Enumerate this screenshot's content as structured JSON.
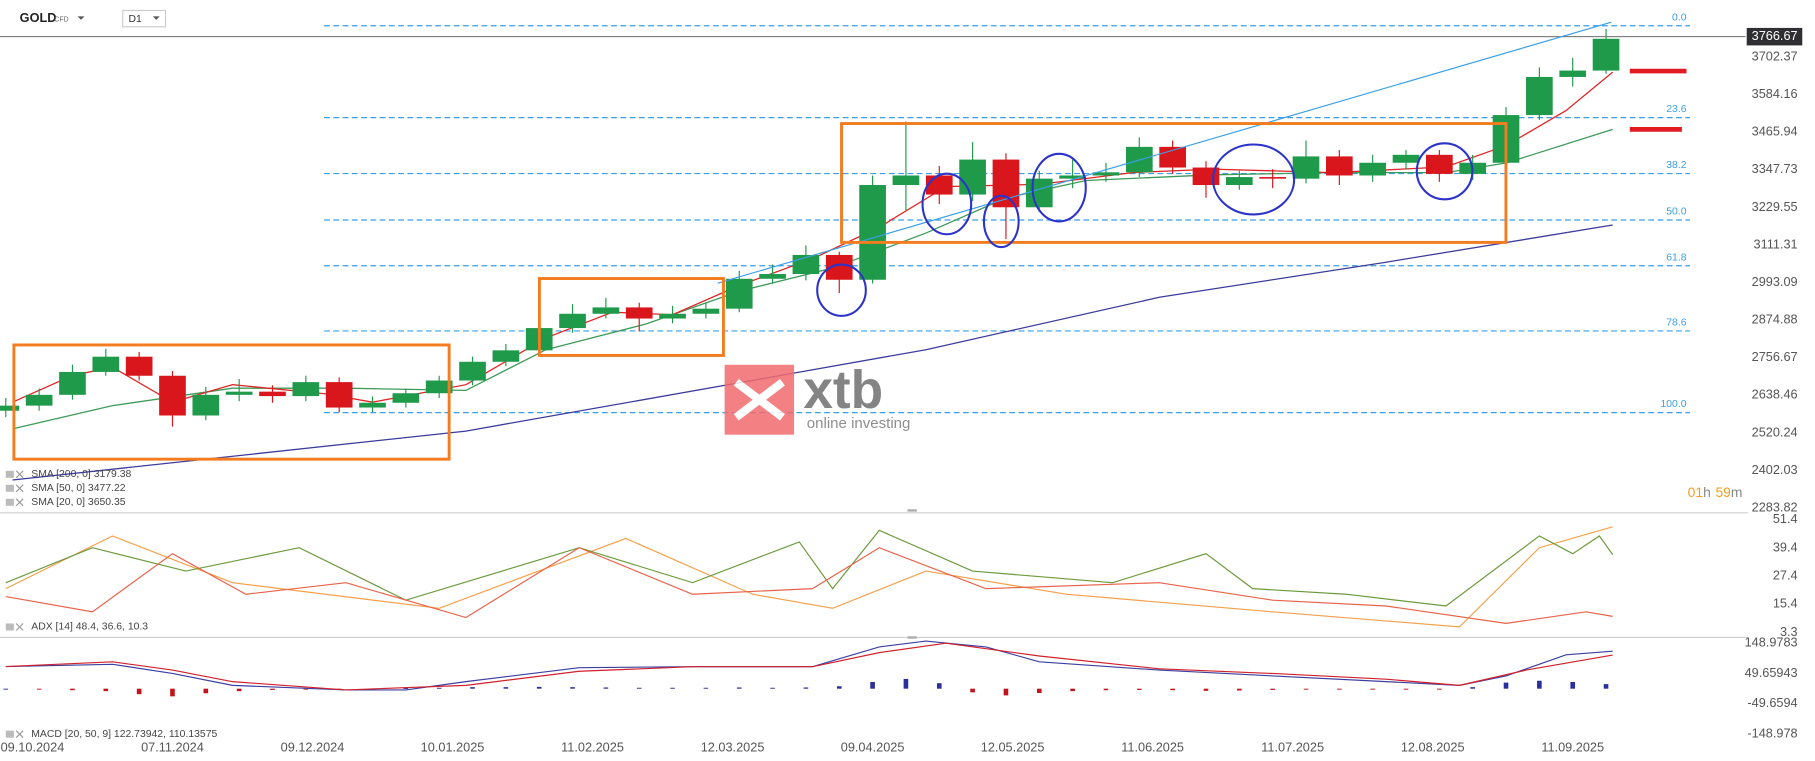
{
  "header": {
    "symbol": "GOLD",
    "instrument_type": "CFD",
    "timeframe": "D1"
  },
  "watermark": {
    "brand": "xtb",
    "tagline": "online investing"
  },
  "timer": {
    "hours": "01",
    "hours_unit": "h",
    "minutes": "59",
    "minutes_unit": "m"
  },
  "chart_data": [
    {
      "type": "candlestick",
      "x": [
        0,
        5,
        10,
        15,
        20,
        25,
        30,
        35,
        40,
        45,
        50,
        55,
        60,
        65,
        70,
        75,
        80,
        85,
        90,
        95,
        100,
        105,
        110,
        115,
        120,
        125,
        130,
        135,
        140,
        145,
        150,
        155,
        160,
        165,
        170,
        175,
        180,
        185,
        190,
        195,
        200,
        205,
        210,
        215,
        220,
        225,
        230,
        235,
        240
      ],
      "open": [
        2590,
        2606,
        2640,
        2712,
        2760,
        2700,
        2575,
        2640,
        2650,
        2636,
        2680,
        2600,
        2615,
        2645,
        2685,
        2744,
        2780,
        2850,
        2895,
        2915,
        2880,
        2895,
        2911,
        3005,
        3020,
        3080,
        3002,
        3300,
        3330,
        3270,
        3380,
        3230,
        3320,
        3330,
        3340,
        3420,
        3355,
        3300,
        3325,
        3320,
        3390,
        3330,
        3370,
        3395,
        3335,
        3370,
        3520,
        3640,
        3660
      ],
      "high": [
        2630,
        2660,
        2735,
        2785,
        2775,
        2715,
        2665,
        2690,
        2670,
        2700,
        2695,
        2635,
        2660,
        2700,
        2760,
        2800,
        2870,
        2925,
        2945,
        2930,
        2920,
        2930,
        3030,
        3050,
        3110,
        3090,
        3330,
        3500,
        3360,
        3435,
        3400,
        3345,
        3380,
        3370,
        3450,
        3440,
        3375,
        3345,
        3350,
        3440,
        3410,
        3395,
        3410,
        3410,
        3395,
        3545,
        3670,
        3700,
        3791
      ],
      "low": [
        2570,
        2590,
        2625,
        2700,
        2685,
        2540,
        2560,
        2620,
        2615,
        2620,
        2585,
        2585,
        2600,
        2630,
        2670,
        2730,
        2765,
        2835,
        2880,
        2840,
        2865,
        2880,
        2900,
        2990,
        3000,
        2960,
        2990,
        3220,
        3240,
        3250,
        3130,
        3215,
        3290,
        3310,
        3325,
        3335,
        3260,
        3285,
        3290,
        3305,
        3300,
        3310,
        3350,
        3310,
        3315,
        3360,
        3505,
        3610,
        3650
      ],
      "close": [
        2606,
        2640,
        2712,
        2760,
        2700,
        2575,
        2640,
        2650,
        2636,
        2680,
        2600,
        2615,
        2645,
        2685,
        2744,
        2780,
        2850,
        2895,
        2915,
        2880,
        2895,
        2911,
        3005,
        3020,
        3080,
        3002,
        3300,
        3330,
        3270,
        3380,
        3230,
        3320,
        3330,
        3340,
        3420,
        3355,
        3300,
        3325,
        3320,
        3390,
        3330,
        3370,
        3395,
        3335,
        3370,
        3520,
        3640,
        3660,
        3760
      ],
      "up_color": "#1f9a4b",
      "down_color": "#d9161c",
      "last_price": 3766.67,
      "xlim": [
        0,
        242
      ],
      "xticks": [
        {
          "value": 4,
          "label": "09.10.2024"
        },
        {
          "value": 25,
          "label": "07.11.2024"
        },
        {
          "value": 46,
          "label": "09.12.2024"
        },
        {
          "value": 67,
          "label": "10.01.2025"
        },
        {
          "value": 88,
          "label": "11.02.2025"
        },
        {
          "value": 109,
          "label": "12.03.2025"
        },
        {
          "value": 130,
          "label": "09.04.2025"
        },
        {
          "value": 151,
          "label": "12.05.2025"
        },
        {
          "value": 172,
          "label": "11.06.2025"
        },
        {
          "value": 193,
          "label": "11.07.2025"
        },
        {
          "value": 214,
          "label": "12.08.2025"
        },
        {
          "value": 235,
          "label": "11.09.2025"
        }
      ],
      "ylim": [
        2269,
        3882
      ],
      "yticks": [
        3702.37,
        3584.16,
        3465.94,
        3347.73,
        3229.55,
        3111.31,
        2993.09,
        2874.88,
        2756.67,
        2638.46,
        2520.24,
        2402.03,
        2283.82
      ],
      "fib_levels": [
        {
          "label": "0.0",
          "value": 3801
        },
        {
          "label": "23.6",
          "value": 3512
        },
        {
          "label": "38.2",
          "value": 3336
        },
        {
          "label": "50.0",
          "value": 3190
        },
        {
          "label": "61.8",
          "value": 3046
        },
        {
          "label": "78.6",
          "value": 2841
        },
        {
          "label": "100.0",
          "value": 2584
        }
      ],
      "fib_color": "#3a9fe6",
      "lines": [
        {
          "name": "SMA [200, 0] 3179.38",
          "color": "#3c3c9c",
          "x": [
            1,
            69,
            138,
            173,
            207,
            241
          ],
          "values": [
            2372,
            2526,
            2782,
            2947,
            3057,
            3174
          ]
        },
        {
          "name": "SMA [50, 0] 3477.22",
          "color": "#3e9a5a",
          "x": [
            1,
            16,
            34,
            51,
            69,
            81,
            96,
            110,
            124,
            138,
            150,
            162,
            181,
            199,
            216,
            225,
            241
          ],
          "values": [
            2533,
            2606,
            2661,
            2661,
            2654,
            2782,
            2863,
            2966,
            3039,
            3149,
            3259,
            3314,
            3332,
            3339,
            3339,
            3369,
            3475
          ]
        },
        {
          "name": "SMA [20, 0] 3650.35",
          "color": "#e02525",
          "x": [
            1,
            10,
            16,
            25,
            34,
            48,
            55,
            69,
            81,
            91,
            100,
            110,
            121,
            131,
            141,
            155,
            169,
            181,
            199,
            216,
            225,
            234,
            241
          ],
          "values": [
            2617,
            2701,
            2727,
            2617,
            2672,
            2643,
            2617,
            2672,
            2819,
            2900,
            2892,
            2984,
            3068,
            3167,
            3295,
            3302,
            3339,
            3350,
            3339,
            3357,
            3424,
            3534,
            3655
          ]
        }
      ]
    },
    {
      "type": "line",
      "legend": "ADX [14] 48.4, 36.6, 10.3",
      "ylim": [
        1.8,
        53.9
      ],
      "yticks": [
        51.4,
        39.4,
        27.4,
        15.4,
        3.3
      ],
      "series": [
        {
          "color": "#f5a04a",
          "x": [
            0,
            16,
            34,
            65,
            93,
            112,
            124,
            138,
            159,
            190,
            218,
            230,
            241
          ],
          "values": [
            22.1,
            44.5,
            24.6,
            13.7,
            43.5,
            19.7,
            13.7,
            29.6,
            19.7,
            12.2,
            5.8,
            39.5,
            48.4
          ]
        },
        {
          "color": "#6c9a3c",
          "x": [
            0,
            13,
            27,
            44,
            60,
            86,
            103,
            119,
            124,
            131,
            145,
            166,
            180,
            187,
            201,
            216,
            230,
            235,
            239,
            241
          ],
          "values": [
            24.6,
            39.5,
            29.6,
            39.5,
            17.2,
            39.5,
            24.6,
            42.0,
            22.1,
            46.9,
            29.6,
            24.6,
            37.0,
            22.1,
            19.7,
            14.7,
            44.5,
            37.0,
            44.5,
            36.6
          ]
        },
        {
          "color": "#e8634a",
          "x": [
            0,
            13,
            25,
            36,
            51,
            69,
            86,
            103,
            121,
            131,
            147,
            173,
            190,
            207,
            225,
            237,
            241
          ],
          "values": [
            18.7,
            12.2,
            37.0,
            19.7,
            24.6,
            9.8,
            39.5,
            19.7,
            22.1,
            39.5,
            22.1,
            24.6,
            17.2,
            14.7,
            7.3,
            12.2,
            10.3
          ]
        }
      ]
    },
    {
      "type": "macd",
      "legend": "MACD [20, 50, 9] 122.73942, 110.13575",
      "ylim": [
        -172,
        164
      ],
      "yticks": [
        148.9783,
        49.65943,
        -49.6594,
        -148.978
      ],
      "series": [
        {
          "color": "#3b3fa0",
          "x": [
            0,
            16,
            25,
            34,
            51,
            60,
            69,
            86,
            103,
            121,
            131,
            138,
            147,
            155,
            173,
            190,
            207,
            218,
            225,
            234,
            241
          ],
          "values": [
            72.5,
            80,
            50,
            11,
            -4,
            -4,
            23,
            69,
            72,
            72,
            137,
            156,
            137,
            88,
            61,
            42,
            23,
            11,
            42,
            111,
            122.73942
          ]
        },
        {
          "color": "#d0202a",
          "x": [
            0,
            16,
            25,
            34,
            51,
            69,
            86,
            103,
            121,
            131,
            141,
            155,
            173,
            190,
            207,
            218,
            228,
            241
          ],
          "values": [
            72.5,
            88,
            61,
            23,
            -4,
            11,
            57,
            72,
            72,
            118,
            149,
            107,
            65,
            50,
            31,
            11,
            61,
            110.13575
          ]
        }
      ],
      "histogram": {
        "up_color": "#2b2f9e",
        "down_color": "#c0161b",
        "x": [
          0,
          5,
          10,
          15,
          20,
          25,
          30,
          35,
          40,
          45,
          50,
          55,
          60,
          65,
          70,
          75,
          80,
          85,
          90,
          95,
          100,
          105,
          110,
          115,
          120,
          125,
          130,
          135,
          140,
          145,
          150,
          155,
          160,
          165,
          170,
          175,
          180,
          185,
          190,
          195,
          200,
          205,
          210,
          215,
          220,
          225,
          230,
          235,
          240
        ],
        "values": [
          0,
          -3,
          -5,
          -8,
          -18,
          -25,
          -15,
          -8,
          -4,
          -3,
          -2,
          -1,
          2,
          3,
          5,
          5,
          6,
          5,
          4,
          3,
          3,
          3,
          4,
          3,
          4,
          8,
          22,
          32,
          18,
          -12,
          -22,
          -14,
          -8,
          -5,
          -4,
          -5,
          -7,
          -6,
          -4,
          -3,
          -2,
          -3,
          -2,
          -3,
          5,
          20,
          26,
          22,
          15
        ]
      }
    }
  ]
}
